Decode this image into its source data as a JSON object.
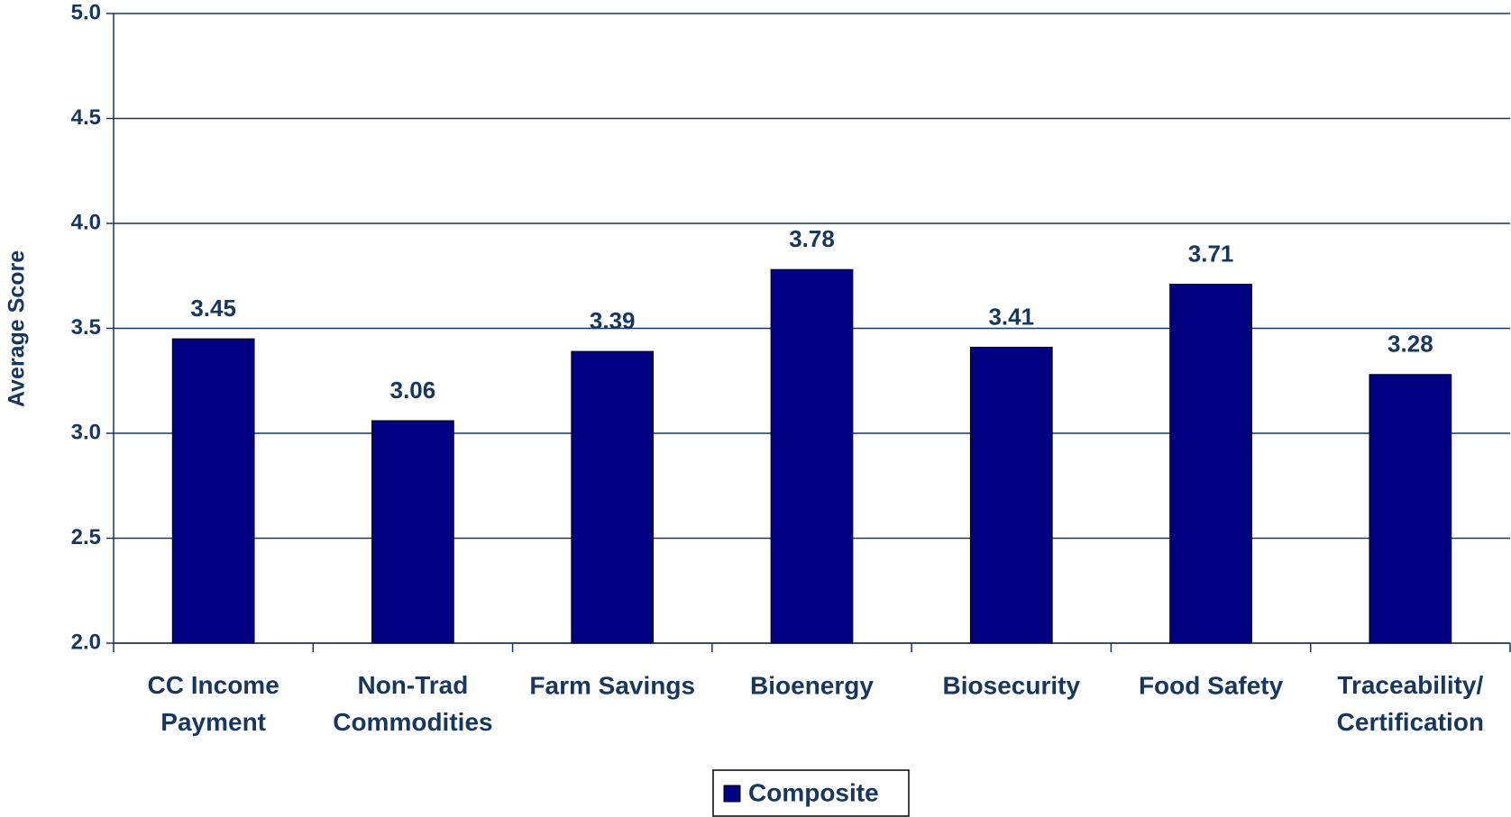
{
  "chart_data": {
    "type": "bar",
    "y_label": "Average Score",
    "categories": [
      "CC Income\nPayment",
      "Non-Trad\nCommodities",
      "Farm Savings",
      "Bioenergy",
      "Biosecurity",
      "Food Safety",
      "Traceability/\nCertification"
    ],
    "series": [
      {
        "name": "Composite",
        "color": "#000080",
        "values": [
          3.45,
          3.06,
          3.39,
          3.78,
          3.41,
          3.71,
          3.28
        ]
      }
    ],
    "ylim": [
      2,
      5
    ],
    "yticks": [
      {
        "value": 2,
        "label": "2.0"
      },
      {
        "value": 2.5,
        "label": "2.5"
      },
      {
        "value": 3,
        "label": "3.0"
      },
      {
        "value": 3.5,
        "label": "3.5"
      },
      {
        "value": 4,
        "label": "4.0"
      },
      {
        "value": 4.5,
        "label": "4.5"
      },
      {
        "value": 5,
        "label": "5.0"
      }
    ],
    "grid": true,
    "legend": "bottom"
  }
}
